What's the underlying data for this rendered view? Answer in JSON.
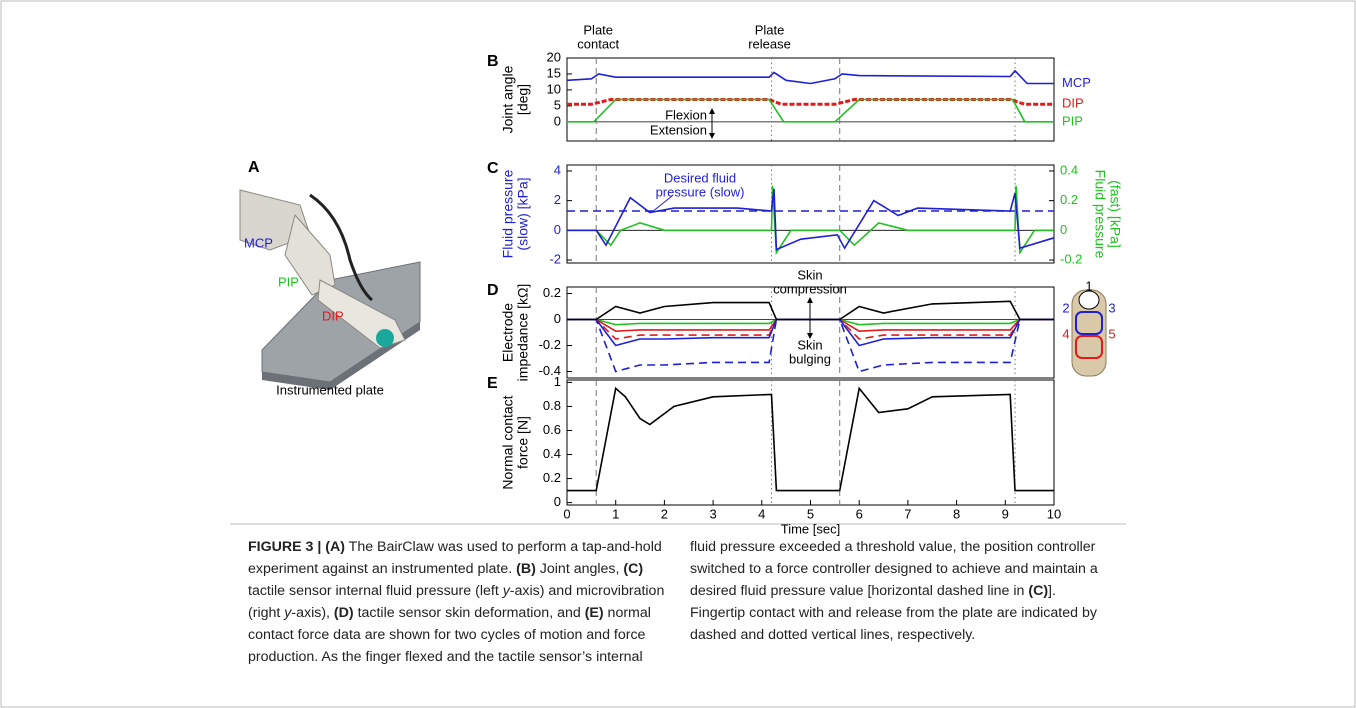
{
  "figure": {
    "panel_a": {
      "label": "A",
      "joints": [
        "MCP",
        "PIP",
        "DIP"
      ],
      "plate": "Instrumented plate"
    },
    "events": {
      "contact": [
        0.6,
        5.6
      ],
      "release": [
        4.2,
        9.2
      ]
    },
    "event_labels": {
      "contact": [
        "Plate",
        "contact"
      ],
      "release": [
        "Plate",
        "release"
      ]
    },
    "electrode_labels": [
      "1",
      "2",
      "3",
      "4",
      "5"
    ]
  },
  "chart_data": [
    {
      "type": "line",
      "panel": "B",
      "ylabel": [
        "Joint angle",
        "[deg]"
      ],
      "xlim": [
        0,
        10
      ],
      "ylim": [
        -6,
        20
      ],
      "yticks": [
        0,
        5,
        10,
        15,
        20
      ],
      "zero_line": true,
      "annotations": {
        "up": "Flexion",
        "down": "Extension"
      },
      "series": [
        {
          "name": "MCP",
          "color": "#1f1fd6",
          "style": "solid",
          "x": [
            0,
            0.5,
            0.65,
            1,
            4.15,
            4.25,
            4.5,
            5.0,
            5.5,
            5.65,
            6,
            9.1,
            9.2,
            9.45,
            10
          ],
          "values": [
            13,
            13.5,
            15,
            14,
            14,
            15.5,
            13,
            12,
            13.5,
            15,
            14.5,
            14.2,
            16,
            12,
            12
          ]
        },
        {
          "name": "DIP",
          "color": "#e01b1b",
          "style": "dashed",
          "x": [
            0,
            0.5,
            0.9,
            4.15,
            4.4,
            5.5,
            5.9,
            9.1,
            9.4,
            10
          ],
          "values": [
            5.5,
            5.5,
            7,
            7,
            5.5,
            5.5,
            7,
            7,
            5.5,
            5.5
          ]
        },
        {
          "name": "PIP",
          "color": "#1fc21f",
          "style": "solid",
          "x": [
            0,
            0.55,
            1.0,
            4.15,
            4.45,
            5.5,
            6.0,
            9.15,
            9.4,
            10
          ],
          "values": [
            0,
            0,
            7,
            7,
            0,
            0,
            7,
            7,
            0,
            0
          ]
        }
      ]
    },
    {
      "type": "line",
      "panel": "C",
      "ylabel": [
        "Fluid pressure",
        "(slow) [kPa]"
      ],
      "y2label": [
        "Fluid pressure",
        "(fast) [kPa]"
      ],
      "xlim": [
        0,
        10
      ],
      "ylim": [
        -2.2,
        4.4
      ],
      "yticks": [
        -2,
        0,
        2,
        4
      ],
      "y2lim": [
        -0.22,
        0.44
      ],
      "y2ticks": [
        -0.2,
        0,
        0.2,
        0.4
      ],
      "zero_line": true,
      "annotations": {
        "desired": [
          "Desired fluid",
          "pressure (slow)"
        ]
      },
      "series": [
        {
          "color": "#1f1fd6",
          "style": "dashed",
          "x": [
            0,
            10
          ],
          "values": [
            1.3,
            1.3
          ]
        },
        {
          "color": "#1fc21f",
          "style": "solid",
          "axis": "y2",
          "x": [
            0,
            0.6,
            0.9,
            1.1,
            1.5,
            2,
            4.2,
            4.22,
            4.3,
            4.6,
            5.6,
            5.9,
            6.4,
            7,
            9.2,
            9.22,
            9.3,
            9.6,
            10
          ],
          "values": [
            0,
            0,
            -0.1,
            0,
            0.05,
            0,
            0,
            0.3,
            -0.15,
            0,
            0,
            -0.1,
            0.05,
            0,
            0,
            0.3,
            -0.15,
            0,
            0
          ]
        },
        {
          "color": "#1f1fd6",
          "style": "solid",
          "x": [
            0,
            0.6,
            0.8,
            1.3,
            1.7,
            2.2,
            3.5,
            4.2,
            4.25,
            4.3,
            4.8,
            5.55,
            5.7,
            6.3,
            6.8,
            7.2,
            9.1,
            9.2,
            9.3,
            10
          ],
          "values": [
            0,
            0,
            -1,
            2.2,
            1.2,
            1.5,
            1.5,
            1.3,
            2.8,
            -1.3,
            -0.6,
            -0.3,
            -1.2,
            2.0,
            1.0,
            1.5,
            1.3,
            2.5,
            -1.2,
            -0.5
          ]
        }
      ]
    },
    {
      "type": "line",
      "panel": "D",
      "ylabel": [
        "Electrode",
        "impedance [kΩ]"
      ],
      "xlim": [
        0,
        10
      ],
      "ylim": [
        -0.45,
        0.25
      ],
      "yticks": [
        -0.4,
        -0.2,
        0,
        0.2
      ],
      "zero_line": true,
      "annotations": {
        "up": [
          "Skin",
          "compression"
        ],
        "down": [
          "Skin",
          "bulging"
        ]
      },
      "x": [
        0,
        0.6,
        1.0,
        1.5,
        2,
        3,
        4.15,
        4.3,
        5.6,
        6,
        6.5,
        7.5,
        9.1,
        9.3,
        10
      ],
      "series": [
        {
          "color": "#1fc21f",
          "style": "solid",
          "values": [
            0,
            0,
            -0.04,
            -0.03,
            -0.03,
            -0.03,
            -0.03,
            0,
            0,
            -0.04,
            -0.03,
            -0.03,
            -0.03,
            0,
            0
          ]
        },
        {
          "color": "#e01b1b",
          "style": "solid",
          "values": [
            0,
            0,
            -0.09,
            -0.08,
            -0.08,
            -0.08,
            -0.08,
            0,
            0,
            -0.09,
            -0.08,
            -0.08,
            -0.08,
            0,
            0
          ]
        },
        {
          "color": "#e01b1b",
          "style": "dashed",
          "values": [
            0,
            0,
            -0.15,
            -0.12,
            -0.12,
            -0.12,
            -0.12,
            0,
            0,
            -0.15,
            -0.12,
            -0.12,
            -0.12,
            0,
            0
          ]
        },
        {
          "color": "#1f1fd6",
          "style": "solid",
          "values": [
            0,
            0,
            -0.2,
            -0.15,
            -0.15,
            -0.14,
            -0.14,
            0,
            0,
            -0.2,
            -0.15,
            -0.14,
            -0.14,
            0,
            0
          ]
        },
        {
          "color": "#1f1fd6",
          "style": "dashed",
          "values": [
            0,
            0,
            -0.4,
            -0.35,
            -0.35,
            -0.33,
            -0.33,
            0,
            0,
            -0.4,
            -0.35,
            -0.33,
            -0.33,
            0,
            0
          ]
        },
        {
          "color": "#000000",
          "style": "solid",
          "values": [
            0,
            0,
            0.1,
            0.05,
            0.1,
            0.13,
            0.13,
            0,
            0,
            0.1,
            0.05,
            0.12,
            0.14,
            0,
            0
          ]
        }
      ]
    },
    {
      "type": "line",
      "panel": "E",
      "ylabel": [
        "Normal contact",
        "force [N]"
      ],
      "xlabel": "Time [sec]",
      "xlim": [
        0,
        10
      ],
      "xticks": [
        0,
        1,
        2,
        3,
        4,
        5,
        6,
        7,
        8,
        9,
        10
      ],
      "ylim": [
        -0.02,
        1.02
      ],
      "yticks": [
        0,
        0.2,
        0.4,
        0.6,
        0.8,
        1
      ],
      "series": [
        {
          "color": "#000000",
          "style": "solid",
          "x": [
            0,
            0.6,
            1.0,
            1.2,
            1.5,
            1.7,
            2.2,
            3,
            4.2,
            4.3,
            5.6,
            6.0,
            6.4,
            7,
            7.5,
            9.1,
            9.2,
            10
          ],
          "values": [
            0.1,
            0.1,
            0.95,
            0.88,
            0.7,
            0.65,
            0.8,
            0.88,
            0.9,
            0.1,
            0.1,
            0.95,
            0.75,
            0.78,
            0.88,
            0.9,
            0.1,
            0.1
          ]
        }
      ]
    }
  ],
  "caption": {
    "runs": [
      {
        "text": "FIGURE 3 | (A)",
        "style": "bold"
      },
      {
        "text": " The BairClaw was used to perform a tap-and-hold experiment against an instrumented plate. ",
        "style": "plain"
      },
      {
        "text": "(B)",
        "style": "bold"
      },
      {
        "text": " Joint angles, ",
        "style": "plain"
      },
      {
        "text": "(C)",
        "style": "bold"
      },
      {
        "text": " tactile sensor internal fluid pressure (left ",
        "style": "plain"
      },
      {
        "text": "y",
        "style": "italic"
      },
      {
        "text": "-axis) and microvibration (right ",
        "style": "plain"
      },
      {
        "text": "y",
        "style": "italic"
      },
      {
        "text": "-axis), ",
        "style": "plain"
      },
      {
        "text": "(D)",
        "style": "bold"
      },
      {
        "text": " tactile sensor skin deformation, and ",
        "style": "plain"
      },
      {
        "text": "(E)",
        "style": "bold"
      },
      {
        "text": " normal contact force data are shown for two cycles of motion and force production. As the finger flexed and the tactile sensor’s internal fluid pressure exceeded a threshold value, the position controller switched to a force controller designed to achieve and maintain a desired fluid pressure value [horizontal dashed line in ",
        "style": "plain"
      },
      {
        "text": "(C)",
        "style": "bold"
      },
      {
        "text": "]. Fingertip contact with and release from the plate are indicated by dashed and dotted vertical lines, respectively.",
        "style": "plain"
      }
    ]
  }
}
